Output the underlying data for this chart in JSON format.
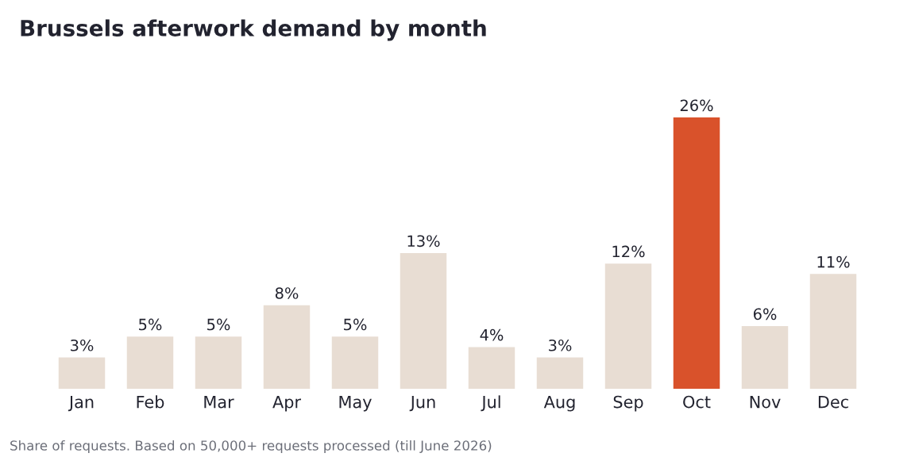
{
  "chart_data": {
    "type": "bar",
    "title": "Brussels afterwork demand by month",
    "categories": [
      "Jan",
      "Feb",
      "Mar",
      "Apr",
      "May",
      "Jun",
      "Jul",
      "Aug",
      "Sep",
      "Oct",
      "Nov",
      "Dec"
    ],
    "values": [
      3,
      5,
      5,
      8,
      5,
      13,
      4,
      3,
      12,
      26,
      6,
      11
    ],
    "value_labels": [
      "3%",
      "5%",
      "5%",
      "8%",
      "5%",
      "13%",
      "4%",
      "3%",
      "12%",
      "26%",
      "6%",
      "11%"
    ],
    "colors": [
      "#e8ddd3",
      "#e8ddd3",
      "#e8ddd3",
      "#e8ddd3",
      "#e8ddd3",
      "#e8ddd3",
      "#e8ddd3",
      "#e8ddd3",
      "#e8ddd3",
      "#d9522b",
      "#e8ddd3",
      "#e8ddd3"
    ],
    "tick_labels": "x",
    "grid": false,
    "annotations": [
      "Share of requests. Based on 50,000+ requests processed (till June 2026)"
    ]
  }
}
